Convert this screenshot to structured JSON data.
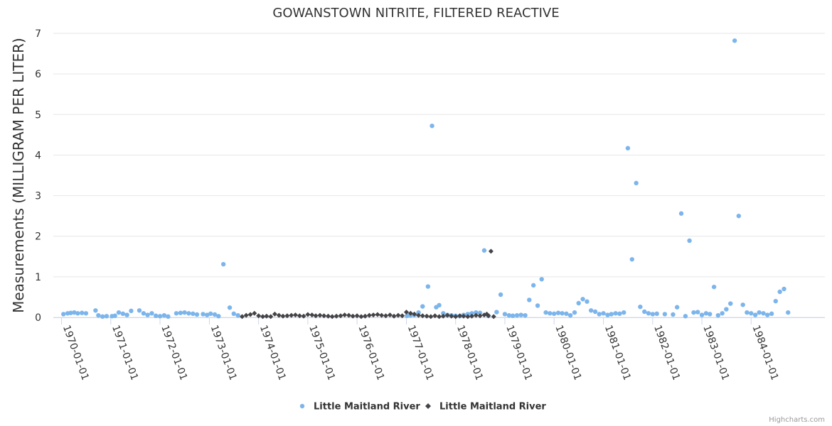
{
  "chart_data": {
    "type": "scatter",
    "title": "GOWANSTOWN NITRITE, FILTERED REACTIVE",
    "xlabel": "",
    "ylabel": "Measurements (MILLIGRAM PER LITER)",
    "ylim": [
      0,
      7
    ],
    "yticks": [
      "0",
      "1",
      "2",
      "3",
      "4",
      "5",
      "6",
      "7"
    ],
    "xlim": [
      "1969-11-01",
      "1985-07-01"
    ],
    "xticks": [
      "1970-01-01",
      "1971-01-01",
      "1972-01-01",
      "1973-01-01",
      "1974-01-01",
      "1975-01-01",
      "1976-01-01",
      "1977-01-01",
      "1978-01-01",
      "1979-01-01",
      "1980-01-01",
      "1981-01-01",
      "1982-01-01",
      "1983-01-01",
      "1984-01-01"
    ],
    "grid": true,
    "legend_position": "bottom-center",
    "series": [
      {
        "name": "Little Maitland River",
        "marker": "circle",
        "color": "#7cb5ec",
        "points": [
          [
            "1970-01-15",
            0.08
          ],
          [
            "1970-02-15",
            0.1
          ],
          [
            "1970-03-10",
            0.11
          ],
          [
            "1970-04-05",
            0.12
          ],
          [
            "1970-05-01",
            0.1
          ],
          [
            "1970-06-01",
            0.11
          ],
          [
            "1970-07-01",
            0.1
          ],
          [
            "1970-09-10",
            0.17
          ],
          [
            "1970-10-01",
            0.05
          ],
          [
            "1970-11-01",
            0.02
          ],
          [
            "1970-12-01",
            0.03
          ],
          [
            "1971-01-10",
            0.03
          ],
          [
            "1971-02-01",
            0.04
          ],
          [
            "1971-03-01",
            0.12
          ],
          [
            "1971-04-01",
            0.09
          ],
          [
            "1971-05-01",
            0.06
          ],
          [
            "1971-06-01",
            0.16
          ],
          [
            "1971-08-01",
            0.17
          ],
          [
            "1971-09-01",
            0.1
          ],
          [
            "1971-10-01",
            0.06
          ],
          [
            "1971-11-01",
            0.1
          ],
          [
            "1971-12-01",
            0.04
          ],
          [
            "1972-01-01",
            0.03
          ],
          [
            "1972-02-01",
            0.05
          ],
          [
            "1972-03-01",
            0.02
          ],
          [
            "1972-05-01",
            0.1
          ],
          [
            "1972-06-01",
            0.11
          ],
          [
            "1972-07-01",
            0.12
          ],
          [
            "1972-08-01",
            0.1
          ],
          [
            "1972-09-01",
            0.09
          ],
          [
            "1972-10-01",
            0.07
          ],
          [
            "1972-11-15",
            0.08
          ],
          [
            "1972-12-15",
            0.06
          ],
          [
            "1973-01-10",
            0.09
          ],
          [
            "1973-02-10",
            0.07
          ],
          [
            "1973-03-10",
            0.03
          ],
          [
            "1973-04-15",
            1.31
          ],
          [
            "1973-06-01",
            0.24
          ],
          [
            "1973-07-01",
            0.09
          ],
          [
            "1973-08-01",
            0.05
          ],
          [
            "1977-01-05",
            0.04
          ],
          [
            "1977-02-01",
            0.05
          ],
          [
            "1977-03-01",
            0.06
          ],
          [
            "1977-04-01",
            0.12
          ],
          [
            "1977-05-01",
            0.27
          ],
          [
            "1977-06-10",
            0.76
          ],
          [
            "1977-07-10",
            4.72
          ],
          [
            "1977-08-10",
            0.25
          ],
          [
            "1977-09-01",
            0.3
          ],
          [
            "1977-10-01",
            0.1
          ],
          [
            "1977-11-01",
            0.06
          ],
          [
            "1977-12-01",
            0.05
          ],
          [
            "1978-01-01",
            0.04
          ],
          [
            "1978-02-01",
            0.03
          ],
          [
            "1978-03-01",
            0.06
          ],
          [
            "1978-04-01",
            0.08
          ],
          [
            "1978-05-01",
            0.1
          ],
          [
            "1978-06-01",
            0.12
          ],
          [
            "1978-07-01",
            0.11
          ],
          [
            "1978-08-01",
            1.65
          ],
          [
            "1978-09-01",
            0.04
          ],
          [
            "1978-11-01",
            0.13
          ],
          [
            "1978-12-01",
            0.56
          ],
          [
            "1979-01-01",
            0.08
          ],
          [
            "1979-02-01",
            0.05
          ],
          [
            "1979-03-01",
            0.04
          ],
          [
            "1979-04-01",
            0.05
          ],
          [
            "1979-05-01",
            0.06
          ],
          [
            "1979-06-01",
            0.05
          ],
          [
            "1979-07-01",
            0.43
          ],
          [
            "1979-08-01",
            0.79
          ],
          [
            "1979-09-01",
            0.29
          ],
          [
            "1979-10-01",
            0.94
          ],
          [
            "1979-11-01",
            0.12
          ],
          [
            "1979-12-01",
            0.1
          ],
          [
            "1980-01-01",
            0.09
          ],
          [
            "1980-02-01",
            0.11
          ],
          [
            "1980-03-01",
            0.1
          ],
          [
            "1980-04-01",
            0.09
          ],
          [
            "1980-05-01",
            0.05
          ],
          [
            "1980-06-01",
            0.12
          ],
          [
            "1980-07-01",
            0.35
          ],
          [
            "1980-08-01",
            0.45
          ],
          [
            "1980-09-01",
            0.39
          ],
          [
            "1980-10-01",
            0.17
          ],
          [
            "1980-11-01",
            0.14
          ],
          [
            "1980-12-01",
            0.08
          ],
          [
            "1981-01-01",
            0.1
          ],
          [
            "1981-02-01",
            0.06
          ],
          [
            "1981-03-01",
            0.08
          ],
          [
            "1981-04-01",
            0.1
          ],
          [
            "1981-05-01",
            0.09
          ],
          [
            "1981-06-01",
            0.12
          ],
          [
            "1981-07-01",
            4.17
          ],
          [
            "1981-08-01",
            1.43
          ],
          [
            "1981-09-01",
            3.31
          ],
          [
            "1981-10-01",
            0.26
          ],
          [
            "1981-11-01",
            0.14
          ],
          [
            "1981-12-01",
            0.1
          ],
          [
            "1982-01-01",
            0.08
          ],
          [
            "1982-02-01",
            0.09
          ],
          [
            "1982-04-01",
            0.08
          ],
          [
            "1982-06-01",
            0.07
          ],
          [
            "1982-07-01",
            0.25
          ],
          [
            "1982-08-01",
            2.56
          ],
          [
            "1982-09-01",
            0.03
          ],
          [
            "1982-10-01",
            1.89
          ],
          [
            "1982-11-01",
            0.12
          ],
          [
            "1982-12-01",
            0.13
          ],
          [
            "1983-01-01",
            0.06
          ],
          [
            "1983-02-01",
            0.1
          ],
          [
            "1983-03-01",
            0.08
          ],
          [
            "1983-04-01",
            0.75
          ],
          [
            "1983-05-01",
            0.05
          ],
          [
            "1983-06-01",
            0.1
          ],
          [
            "1983-07-01",
            0.2
          ],
          [
            "1983-08-01",
            0.34
          ],
          [
            "1983-09-01",
            6.82
          ],
          [
            "1983-10-01",
            2.5
          ],
          [
            "1983-11-01",
            0.31
          ],
          [
            "1983-12-01",
            0.12
          ],
          [
            "1984-01-01",
            0.1
          ],
          [
            "1984-02-01",
            0.06
          ],
          [
            "1984-03-01",
            0.12
          ],
          [
            "1984-04-01",
            0.1
          ],
          [
            "1984-05-01",
            0.06
          ],
          [
            "1984-06-01",
            0.09
          ],
          [
            "1984-07-01",
            0.4
          ],
          [
            "1984-08-01",
            0.63
          ],
          [
            "1984-09-01",
            0.7
          ],
          [
            "1984-10-01",
            0.12
          ]
        ]
      },
      {
        "name": "Little Maitland River",
        "marker": "diamond",
        "color": "#434348",
        "points": [
          [
            "1973-09-01",
            0.02
          ],
          [
            "1973-10-01",
            0.05
          ],
          [
            "1973-11-01",
            0.07
          ],
          [
            "1973-12-01",
            0.1
          ],
          [
            "1974-01-01",
            0.04
          ],
          [
            "1974-02-01",
            0.02
          ],
          [
            "1974-03-01",
            0.03
          ],
          [
            "1974-04-01",
            0.02
          ],
          [
            "1974-05-01",
            0.08
          ],
          [
            "1974-06-01",
            0.05
          ],
          [
            "1974-07-01",
            0.03
          ],
          [
            "1974-08-01",
            0.04
          ],
          [
            "1974-09-01",
            0.05
          ],
          [
            "1974-10-01",
            0.06
          ],
          [
            "1974-11-01",
            0.04
          ],
          [
            "1974-12-01",
            0.03
          ],
          [
            "1975-01-01",
            0.07
          ],
          [
            "1975-02-01",
            0.06
          ],
          [
            "1975-03-01",
            0.04
          ],
          [
            "1975-04-01",
            0.05
          ],
          [
            "1975-05-01",
            0.04
          ],
          [
            "1975-06-01",
            0.03
          ],
          [
            "1975-07-01",
            0.02
          ],
          [
            "1975-08-01",
            0.03
          ],
          [
            "1975-09-01",
            0.04
          ],
          [
            "1975-10-01",
            0.06
          ],
          [
            "1975-11-01",
            0.05
          ],
          [
            "1975-12-01",
            0.03
          ],
          [
            "1976-01-01",
            0.04
          ],
          [
            "1976-02-01",
            0.02
          ],
          [
            "1976-03-01",
            0.03
          ],
          [
            "1976-04-01",
            0.05
          ],
          [
            "1976-05-01",
            0.06
          ],
          [
            "1976-06-01",
            0.07
          ],
          [
            "1976-07-01",
            0.05
          ],
          [
            "1976-08-01",
            0.04
          ],
          [
            "1976-09-01",
            0.06
          ],
          [
            "1976-10-01",
            0.03
          ],
          [
            "1976-11-01",
            0.05
          ],
          [
            "1976-12-01",
            0.04
          ],
          [
            "1977-01-01",
            0.13
          ],
          [
            "1977-02-01",
            0.1
          ],
          [
            "1977-03-01",
            0.08
          ],
          [
            "1977-04-01",
            0.05
          ],
          [
            "1977-05-01",
            0.04
          ],
          [
            "1977-06-01",
            0.03
          ],
          [
            "1977-07-01",
            0.02
          ],
          [
            "1977-08-01",
            0.04
          ],
          [
            "1977-09-01",
            0.02
          ],
          [
            "1977-10-01",
            0.03
          ],
          [
            "1977-11-01",
            0.05
          ],
          [
            "1977-12-01",
            0.03
          ],
          [
            "1978-01-01",
            0.02
          ],
          [
            "1978-02-01",
            0.04
          ],
          [
            "1978-03-01",
            0.03
          ],
          [
            "1978-04-01",
            0.02
          ],
          [
            "1978-05-01",
            0.03
          ],
          [
            "1978-06-01",
            0.05
          ],
          [
            "1978-07-01",
            0.04
          ],
          [
            "1978-08-01",
            0.06
          ],
          [
            "1978-08-20",
            0.08
          ],
          [
            "1978-09-01",
            0.04
          ],
          [
            "1978-09-20",
            1.63
          ],
          [
            "1978-10-10",
            0.02
          ]
        ]
      }
    ]
  },
  "credits": "Highcharts.com"
}
